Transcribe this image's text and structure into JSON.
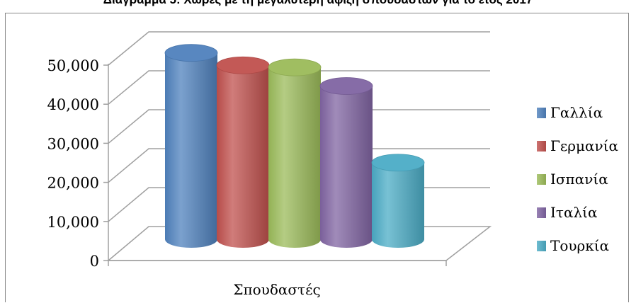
{
  "chart_data": {
    "type": "bar",
    "title": "Διάγραμμα 5: Χώρες με τη μεγαλύτερη αφιξη σπουδαστών για το έτος 2017",
    "categories": [
      "Σπουδαστές"
    ],
    "series": [
      {
        "name": "Γαλλία",
        "values": [
          45000
        ],
        "color": "#4f81bd"
      },
      {
        "name": "Γερμανία",
        "values": [
          42000
        ],
        "color": "#c0504d"
      },
      {
        "name": "Ισπανία",
        "values": [
          41500
        ],
        "color": "#9bbb59"
      },
      {
        "name": "Ιταλία",
        "values": [
          37000
        ],
        "color": "#8064a2"
      },
      {
        "name": "Τουρκία",
        "values": [
          18500
        ],
        "color": "#4bacc6"
      }
    ],
    "ylim": [
      0,
      50000
    ],
    "yticks": [
      "0",
      "10,000",
      "20,000",
      "30,000",
      "40,000",
      "50,000"
    ],
    "ytick_values": [
      0,
      10000,
      20000,
      30000,
      40000,
      50000
    ],
    "grid": true,
    "legend": "right",
    "style": "3d-cylinder"
  }
}
